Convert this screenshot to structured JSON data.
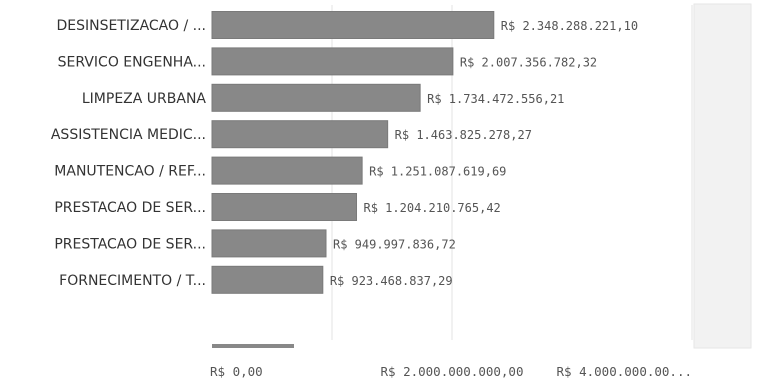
{
  "chart_data": {
    "type": "bar",
    "orientation": "horizontal",
    "categories": [
      "DESINSETIZACAO / ...",
      "SERVICO ENGENHA...",
      "LIMPEZA URBANA",
      "ASSISTENCIA MEDIC...",
      "MANUTENCAO / REF...",
      "PRESTACAO DE SER...",
      "PRESTACAO DE SER...",
      "FORNECIMENTO / T..."
    ],
    "values": [
      2348288221.1,
      2007356782.32,
      1734472556.21,
      1463825278.27,
      1251087619.69,
      1204210765.42,
      949997836.72,
      923468837.29
    ],
    "value_labels": [
      "R$ 2.348.288.221,10",
      "R$ 2.007.356.782,32",
      "R$ 1.734.472.556,21",
      "R$ 1.463.825.278,27",
      "R$ 1.251.087.619,69",
      "R$ 1.204.210.765,42",
      "R$ 949.997.836,72",
      "R$ 923.468.837,29"
    ],
    "xlim": [
      0,
      4000000000
    ],
    "ticks": [
      0,
      2000000000,
      4000000000
    ],
    "tick_labels": [
      "R$ 0,00",
      "R$ 2.000.000.000,00",
      "R$ 4.000.000.00..."
    ],
    "grid": true,
    "title": "",
    "xlabel": "",
    "ylabel": ""
  },
  "colors": {
    "bar": "#888888",
    "bar_edge": "#7a7a7a",
    "grid": "#e3e3e3",
    "scroll_track": "#f2f2f2"
  }
}
